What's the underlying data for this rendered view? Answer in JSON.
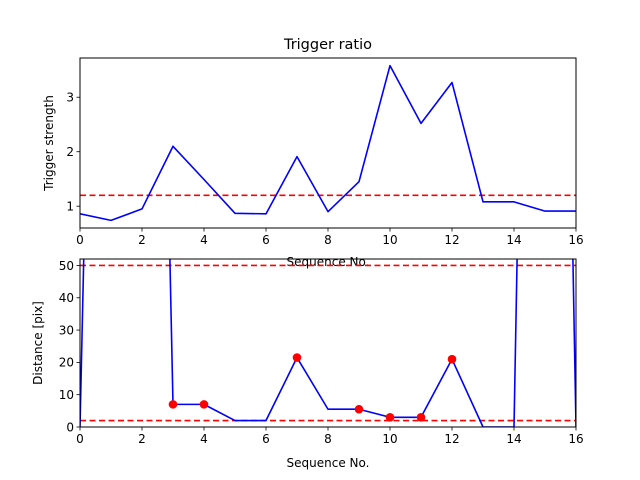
{
  "chart_data": [
    {
      "type": "line",
      "title": "Trigger ratio",
      "xlabel": "Sequence No.",
      "ylabel": "Trigger strength",
      "xlim": [
        0,
        16
      ],
      "ylim": [
        0.6,
        3.72
      ],
      "xticks": [
        0,
        2,
        4,
        6,
        8,
        10,
        12,
        14,
        16
      ],
      "yticks": [
        1,
        2,
        3
      ],
      "grid": false,
      "series": [
        {
          "color": "#0000ff",
          "x": [
            0,
            1,
            2,
            3,
            4,
            5,
            6,
            7,
            8,
            9,
            10,
            11,
            12,
            13,
            14,
            15,
            16
          ],
          "y": [
            0.86,
            0.74,
            0.95,
            2.1,
            1.49,
            0.87,
            0.86,
            1.91,
            0.9,
            1.45,
            3.58,
            2.52,
            3.27,
            1.08,
            1.08,
            0.91,
            0.91
          ]
        }
      ],
      "hlines": [
        {
          "y": 1.2,
          "color": "#ff0000",
          "style": "dashed"
        }
      ]
    },
    {
      "type": "line",
      "title": "",
      "xlabel": "Sequence No.",
      "ylabel": "Distance [pix]",
      "xlim": [
        0,
        16
      ],
      "ylim": [
        0,
        52
      ],
      "xticks": [
        0,
        2,
        4,
        6,
        8,
        10,
        12,
        14,
        16
      ],
      "yticks": [
        0,
        10,
        20,
        30,
        40,
        50
      ],
      "grid": false,
      "series": [
        {
          "color": "#0000ff",
          "x": [
            0,
            0.12,
            0.2,
            2.8,
            2.9,
            3,
            4,
            5,
            6,
            7,
            8,
            9,
            10,
            11,
            12,
            13,
            14,
            14.1,
            14.2,
            15.8,
            15.9,
            16
          ],
          "y": [
            0,
            52,
            60,
            60,
            52,
            7,
            7,
            2,
            2,
            21.5,
            5.5,
            5.5,
            3,
            3,
            21,
            0,
            0,
            52,
            60,
            60,
            52,
            0
          ]
        }
      ],
      "points": {
        "color": "#ff0000",
        "x": [
          3,
          4,
          7,
          9,
          10,
          11,
          12
        ],
        "y": [
          7,
          7,
          21.5,
          5.5,
          3,
          3,
          21
        ]
      },
      "hlines": [
        {
          "y": 50,
          "color": "#ff0000",
          "style": "dashed"
        },
        {
          "y": 2,
          "color": "#ff0000",
          "style": "dashed"
        }
      ]
    }
  ]
}
